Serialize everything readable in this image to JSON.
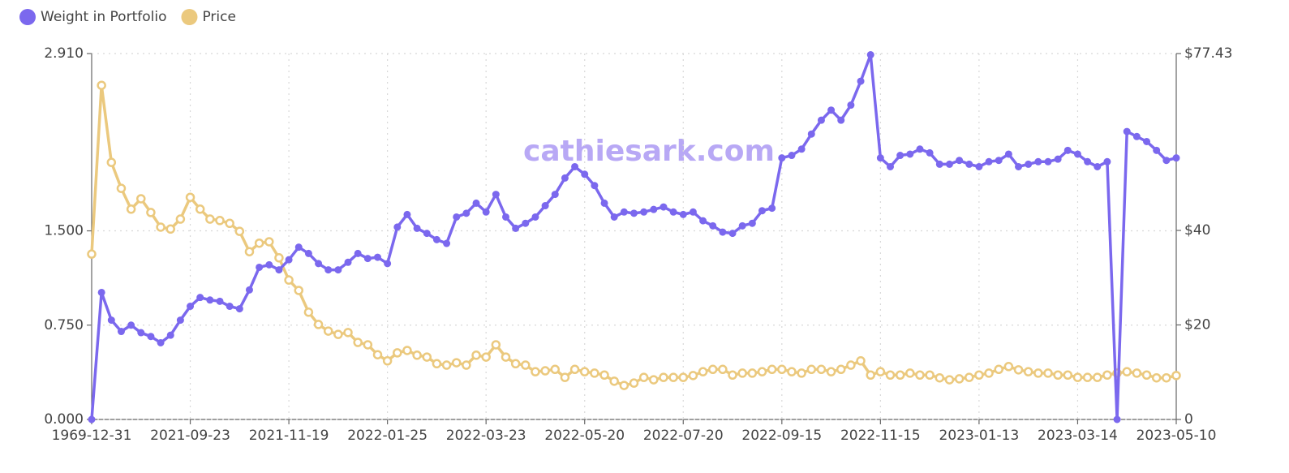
{
  "chart_data": {
    "type": "line",
    "annotation": "cathiesark.com",
    "categories": [
      "1969-12-31",
      null,
      null,
      null,
      null,
      null,
      null,
      null,
      null,
      null,
      "2021-09-23",
      null,
      null,
      null,
      null,
      null,
      null,
      null,
      null,
      null,
      "2021-11-19",
      null,
      null,
      null,
      null,
      null,
      null,
      null,
      null,
      null,
      "2022-01-25",
      null,
      null,
      null,
      null,
      null,
      null,
      null,
      null,
      null,
      "2022-03-23",
      null,
      null,
      null,
      null,
      null,
      null,
      null,
      null,
      null,
      "2022-05-20",
      null,
      null,
      null,
      null,
      null,
      null,
      null,
      null,
      null,
      "2022-07-20",
      null,
      null,
      null,
      null,
      null,
      null,
      null,
      null,
      null,
      "2022-09-15",
      null,
      null,
      null,
      null,
      null,
      null,
      null,
      null,
      null,
      "2022-11-15",
      null,
      null,
      null,
      null,
      null,
      null,
      null,
      null,
      null,
      "2023-01-13",
      null,
      null,
      null,
      null,
      null,
      null,
      null,
      null,
      null,
      "2023-03-14",
      null,
      null,
      null,
      null,
      null,
      null,
      null,
      null,
      null,
      "2023-05-10"
    ],
    "series": [
      {
        "name": "Weight in Portfolio",
        "color": "#7b68ee",
        "axis": "y",
        "marker": "filled",
        "values": [
          0,
          1.01,
          0.79,
          0.7,
          0.75,
          0.69,
          0.66,
          0.61,
          0.67,
          0.79,
          0.9,
          0.97,
          0.95,
          0.94,
          0.9,
          0.88,
          1.03,
          1.21,
          1.23,
          1.19,
          1.27,
          1.37,
          1.32,
          1.24,
          1.19,
          1.19,
          1.25,
          1.32,
          1.28,
          1.29,
          1.24,
          1.53,
          1.63,
          1.52,
          1.48,
          1.43,
          1.4,
          1.61,
          1.64,
          1.72,
          1.65,
          1.79,
          1.61,
          1.52,
          1.56,
          1.61,
          1.7,
          1.79,
          1.92,
          2.01,
          1.95,
          1.86,
          1.72,
          1.61,
          1.65,
          1.64,
          1.65,
          1.67,
          1.69,
          1.65,
          1.63,
          1.65,
          1.58,
          1.54,
          1.49,
          1.48,
          1.54,
          1.56,
          1.66,
          1.68,
          2.08,
          2.1,
          2.15,
          2.27,
          2.38,
          2.46,
          2.38,
          2.5,
          2.69,
          2.9,
          2.08,
          2.01,
          2.1,
          2.11,
          2.15,
          2.12,
          2.03,
          2.03,
          2.06,
          2.03,
          2.01,
          2.05,
          2.06,
          2.11,
          2.01,
          2.03,
          2.05,
          2.05,
          2.07,
          2.14,
          2.11,
          2.05,
          2.01,
          2.05,
          0,
          2.29,
          2.25,
          2.21,
          2.14,
          2.06,
          2.08
        ]
      },
      {
        "name": "Price",
        "color": "#ebc97e",
        "axis": "y2",
        "marker": "hollow",
        "values": [
          35.0,
          70.7,
          54.4,
          48.9,
          44.5,
          46.7,
          43.8,
          40.7,
          40.3,
          42.4,
          47.0,
          44.5,
          42.4,
          42.1,
          41.5,
          39.8,
          35.5,
          37.3,
          37.6,
          34.2,
          29.5,
          27.3,
          22.7,
          20.1,
          18.7,
          18.0,
          18.4,
          16.3,
          15.8,
          13.7,
          12.4,
          14.1,
          14.6,
          13.6,
          13.2,
          11.8,
          11.5,
          12.0,
          11.5,
          13.6,
          13.2,
          15.8,
          13.2,
          11.8,
          11.5,
          10.1,
          10.3,
          10.6,
          8.9,
          10.6,
          10.1,
          9.8,
          9.4,
          8.1,
          7.2,
          7.7,
          8.9,
          8.4,
          8.9,
          8.9,
          8.9,
          9.3,
          10.1,
          10.6,
          10.6,
          9.4,
          9.8,
          9.8,
          10.1,
          10.6,
          10.6,
          10.1,
          9.8,
          10.6,
          10.6,
          10.1,
          10.6,
          11.5,
          12.4,
          9.4,
          10.1,
          9.4,
          9.4,
          9.8,
          9.4,
          9.4,
          8.8,
          8.4,
          8.6,
          8.9,
          9.4,
          9.8,
          10.6,
          11.2,
          10.5,
          10.1,
          9.8,
          9.8,
          9.4,
          9.4,
          8.9,
          8.9,
          8.9,
          9.4,
          9.8,
          10.1,
          9.8,
          9.4,
          8.8,
          8.8,
          9.3
        ]
      }
    ],
    "ylim": [
      0,
      2.91
    ],
    "yticks": [
      {
        "value": 0,
        "label": "0.000"
      },
      {
        "value": 0.75,
        "label": "0.750"
      },
      {
        "value": 1.5,
        "label": "1.500"
      },
      {
        "value": 2.91,
        "label": "2.910"
      }
    ],
    "y2lim": [
      0,
      77.43
    ],
    "y2ticks": [
      0,
      {
        "value": 20,
        "label": "$20"
      },
      {
        "value": 40,
        "label": "$40"
      },
      {
        "value": 77.43,
        "label": "$77.43"
      }
    ],
    "grid": true,
    "legend": "top-left"
  }
}
